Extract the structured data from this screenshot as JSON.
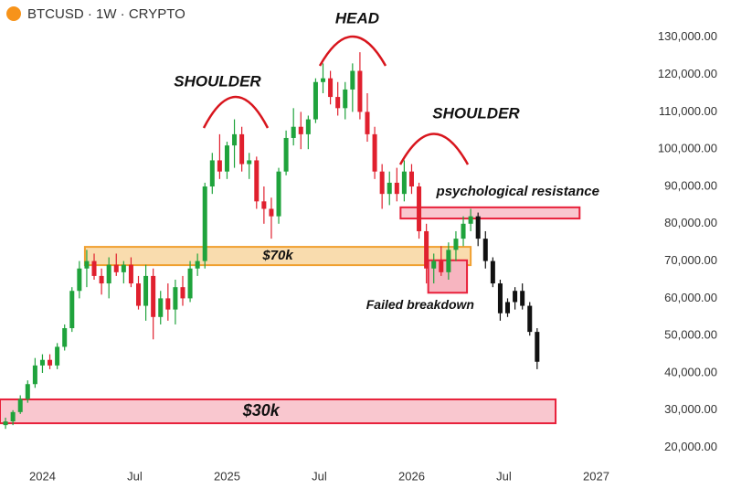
{
  "chart_data": {
    "type": "candlestick",
    "title": "BTCUSD · 1W · CRYPTO",
    "x": [
      2023.8,
      2023.84,
      2023.88,
      2023.92,
      2023.96,
      2024.0,
      2024.04,
      2024.08,
      2024.12,
      2024.16,
      2024.2,
      2024.24,
      2024.28,
      2024.32,
      2024.36,
      2024.4,
      2024.44,
      2024.48,
      2024.52,
      2024.56,
      2024.6,
      2024.64,
      2024.68,
      2024.72,
      2024.76,
      2024.8,
      2024.84,
      2024.88,
      2024.92,
      2024.96,
      2025.0,
      2025.04,
      2025.08,
      2025.12,
      2025.16,
      2025.2,
      2025.24,
      2025.28,
      2025.32,
      2025.36,
      2025.4,
      2025.44,
      2025.48,
      2025.52,
      2025.56,
      2025.6,
      2025.64,
      2025.68,
      2025.72,
      2025.76,
      2025.8,
      2025.84,
      2025.88,
      2025.92,
      2025.96,
      2026.0,
      2026.04,
      2026.08,
      2026.12,
      2026.16,
      2026.2,
      2026.24,
      2026.28,
      2026.32,
      2026.36,
      2026.4,
      2026.44,
      2026.48,
      2026.52,
      2026.56,
      2026.6,
      2026.64,
      2026.68
    ],
    "open": [
      26000,
      27000,
      29500,
      33000,
      37000,
      42000,
      43500,
      42000,
      47000,
      52000,
      62000,
      68000,
      70000,
      66000,
      64000,
      69000,
      67000,
      69000,
      64000,
      58000,
      66000,
      55000,
      60000,
      57000,
      63000,
      60000,
      68000,
      70000,
      90000,
      97000,
      94000,
      101000,
      104000,
      96000,
      97000,
      86000,
      84000,
      82000,
      94000,
      103000,
      106000,
      104000,
      108000,
      118000,
      119000,
      114000,
      111000,
      116000,
      121000,
      110000,
      104000,
      94000,
      88000,
      91000,
      88000,
      94000,
      90000,
      78000,
      68000,
      70000,
      67000,
      73000,
      76000,
      80000,
      82000,
      76000,
      70000,
      64000,
      56000,
      59000,
      62000,
      58000,
      51000
    ],
    "high": [
      28000,
      30000,
      34000,
      38000,
      44000,
      45000,
      45000,
      48000,
      53000,
      63000,
      70000,
      73000,
      72000,
      68000,
      71000,
      72000,
      70000,
      71000,
      66000,
      69000,
      68000,
      62000,
      64000,
      65000,
      66000,
      70000,
      72000,
      91000,
      99000,
      104000,
      102000,
      108000,
      106000,
      99000,
      98000,
      90000,
      87000,
      95000,
      105000,
      111000,
      110000,
      109000,
      119000,
      123000,
      121000,
      118000,
      118000,
      123000,
      126000,
      115000,
      106000,
      96000,
      94000,
      95000,
      97000,
      96000,
      91000,
      80000,
      72000,
      74000,
      75000,
      78000,
      82000,
      84000,
      83000,
      78000,
      71000,
      65000,
      60000,
      63000,
      64000,
      59000,
      52000
    ],
    "low": [
      25000,
      26000,
      29000,
      32000,
      36000,
      40000,
      41000,
      41000,
      46000,
      51000,
      60000,
      63000,
      65000,
      61000,
      60000,
      66000,
      64000,
      63000,
      57000,
      54000,
      49000,
      53000,
      54000,
      53000,
      58000,
      59000,
      66000,
      68000,
      88000,
      92000,
      92000,
      95000,
      94000,
      92000,
      84000,
      80000,
      76000,
      80000,
      93000,
      101000,
      100000,
      100000,
      107000,
      115000,
      112000,
      109000,
      108000,
      110000,
      108000,
      102000,
      92000,
      84000,
      85000,
      86000,
      86000,
      88000,
      76000,
      64000,
      64000,
      66000,
      65000,
      70000,
      74000,
      78000,
      74000,
      68000,
      63000,
      54000,
      55000,
      57000,
      57000,
      50000,
      41000
    ],
    "close": [
      27000,
      29500,
      33000,
      37000,
      42000,
      43500,
      42000,
      47000,
      52000,
      62000,
      68000,
      70000,
      66000,
      64000,
      69000,
      67000,
      69000,
      64000,
      58000,
      66000,
      55000,
      60000,
      57000,
      63000,
      60000,
      68000,
      70000,
      90000,
      97000,
      94000,
      101000,
      104000,
      96000,
      97000,
      86000,
      84000,
      82000,
      94000,
      103000,
      106000,
      104000,
      108000,
      118000,
      119000,
      114000,
      111000,
      116000,
      121000,
      110000,
      104000,
      94000,
      88000,
      91000,
      88000,
      94000,
      90000,
      78000,
      68000,
      70000,
      67000,
      73000,
      76000,
      80000,
      82000,
      76000,
      70000,
      64000,
      56000,
      59000,
      62000,
      58000,
      51000,
      43000
    ],
    "up_color": "#1fa33c",
    "down_color": "#e0202e",
    "projection_color": "#111111",
    "projection_from": 2026.36,
    "xlim": [
      2023.77,
      2027.26
    ],
    "ylim": [
      15000,
      140000
    ],
    "xticks": [
      {
        "value": 2024,
        "label": "2024"
      },
      {
        "value": 2024.5,
        "label": "Jul"
      },
      {
        "value": 2025,
        "label": "2025"
      },
      {
        "value": 2025.5,
        "label": "Jul"
      },
      {
        "value": 2026,
        "label": "2026"
      },
      {
        "value": 2026.5,
        "label": "Jul"
      },
      {
        "value": 2027,
        "label": "2027"
      }
    ],
    "yticks": [
      {
        "value": 20000,
        "label": "20,000.00"
      },
      {
        "value": 30000,
        "label": "30,000.00"
      },
      {
        "value": 40000,
        "label": "40,000.00"
      },
      {
        "value": 50000,
        "label": "50,000.00"
      },
      {
        "value": 60000,
        "label": "60,000.00"
      },
      {
        "value": 70000,
        "label": "70,000.00"
      },
      {
        "value": 80000,
        "label": "80,000.00"
      },
      {
        "value": 90000,
        "label": "90,000.00"
      },
      {
        "value": 100000,
        "label": "100,000.00"
      },
      {
        "value": 110000,
        "label": "110,000.00"
      },
      {
        "value": 120000,
        "label": "120,000.00"
      },
      {
        "value": 130000,
        "label": "130,000.00"
      }
    ],
    "zones": [
      {
        "label": "$70k",
        "x": [
          2024.23,
          2026.32
        ],
        "y": [
          68900,
          73800
        ],
        "fill": "#f9dcae",
        "stroke": "#f0a030"
      },
      {
        "label": "psychological resistance",
        "x": [
          2025.94,
          2026.91
        ],
        "y": [
          81400,
          84400
        ],
        "fill": "#f9c7cf",
        "stroke": "#e8203a"
      },
      {
        "label": "Failed breakdown",
        "x": [
          2026.09,
          2026.3
        ],
        "y": [
          61500,
          70200
        ],
        "fill": "#f7b5c0",
        "stroke": "#e8203a"
      },
      {
        "label": "$30k",
        "x": [
          2023.77,
          2026.78
        ],
        "y": [
          26500,
          32900
        ],
        "fill": "#f9c7cf",
        "stroke": "#e8203a"
      }
    ],
    "annotations": [
      "SHOULDER",
      "HEAD",
      "SHOULDER"
    ]
  }
}
